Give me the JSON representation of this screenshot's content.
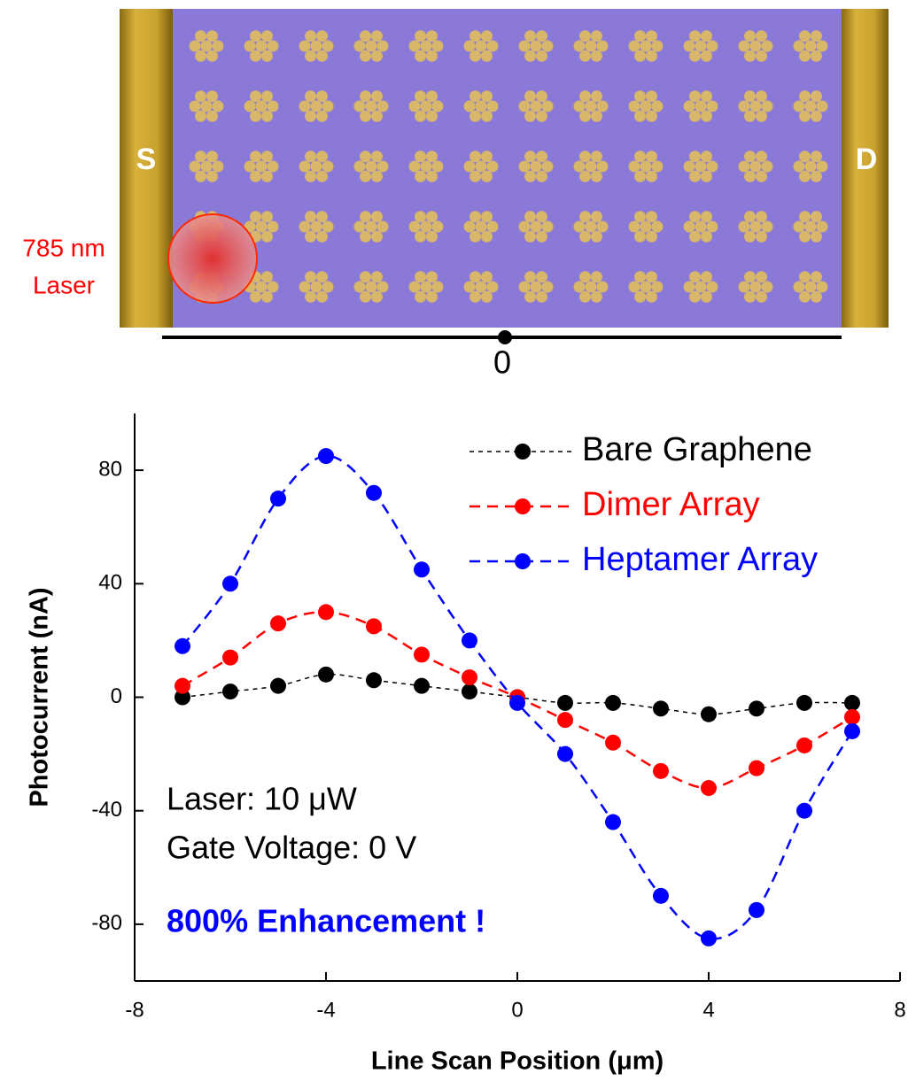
{
  "device": {
    "source_label": "S",
    "drain_label": "D",
    "laser_label": [
      "785 nm",
      "Laser"
    ],
    "scan_origin_label": "0"
  },
  "chart_data": {
    "type": "line",
    "x_label": "Line Scan Position (μm)",
    "y_label": "Photocurrent (nA)",
    "x": [
      -7,
      -6,
      -5,
      -4,
      -3,
      -2,
      -1,
      0,
      1,
      2,
      3,
      4,
      5,
      6,
      7
    ],
    "series": [
      {
        "name": "Bare Graphene",
        "color": "#000000",
        "values": [
          0,
          2,
          4,
          8,
          6,
          4,
          2,
          0,
          -2,
          -2,
          -4,
          -6,
          -4,
          -2,
          -2
        ]
      },
      {
        "name": "Dimer Array",
        "color": "#ff0000",
        "values": [
          4,
          14,
          26,
          30,
          25,
          15,
          7,
          0,
          -8,
          -16,
          -26,
          -32,
          -25,
          -17,
          -7
        ]
      },
      {
        "name": "Heptamer Array",
        "color": "#0000ff",
        "values": [
          18,
          40,
          70,
          85,
          72,
          45,
          20,
          -2,
          -20,
          -44,
          -70,
          -85,
          -75,
          -40,
          -12
        ]
      }
    ],
    "xlim": [
      -8,
      8
    ],
    "xticks": [
      -8,
      -4,
      0,
      4,
      8
    ],
    "ylim": [
      -100,
      100
    ],
    "yticks": [
      -80,
      -40,
      0,
      40,
      80
    ],
    "legend": "upper right",
    "annotations": [
      "Laser: 10 μW",
      "Gate Voltage: 0 V",
      "800% Enhancement !"
    ]
  }
}
